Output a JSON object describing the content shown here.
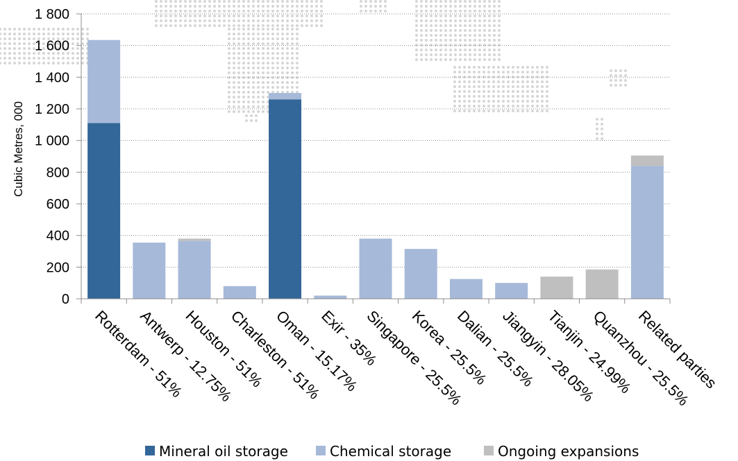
{
  "chart_data": {
    "type": "bar",
    "stacked": true,
    "ylabel": "Cubic Metres, 000",
    "ylim": [
      0,
      1800
    ],
    "yticks": [
      0,
      200,
      400,
      600,
      800,
      1000,
      1200,
      1400,
      1600,
      1800
    ],
    "ytick_labels": [
      "0",
      "200",
      "400",
      "600",
      "800",
      "1 000",
      "1 200",
      "1 400",
      "1 600",
      "1 800"
    ],
    "grid": true,
    "legend_position": "bottom",
    "categories": [
      "Rotterdam - 51%",
      "Antwerp - 12.75%",
      "Houston - 51%",
      "Charleston - 51%",
      "Oman - 15.17%",
      "Exir - 35%",
      "Singapore - 25.5%",
      "Korea - 25.5%",
      "Dalian - 25.5%",
      "Jiangyin - 28.05%",
      "Tianjin - 24.99%",
      "Quanzhou - 25.5%",
      "Related parties"
    ],
    "series": [
      {
        "name": "Mineral oil storage",
        "color": "#336699",
        "values": [
          1110,
          0,
          0,
          0,
          1260,
          0,
          0,
          0,
          0,
          0,
          0,
          0,
          0
        ]
      },
      {
        "name": "Chemical storage",
        "color": "#a6b9d9",
        "values": [
          525,
          355,
          365,
          80,
          40,
          20,
          380,
          315,
          125,
          100,
          0,
          0,
          840
        ]
      },
      {
        "name": "Ongoing expansions",
        "color": "#bfbfbf",
        "values": [
          0,
          0,
          15,
          0,
          0,
          0,
          0,
          0,
          0,
          0,
          140,
          185,
          65
        ]
      }
    ]
  }
}
